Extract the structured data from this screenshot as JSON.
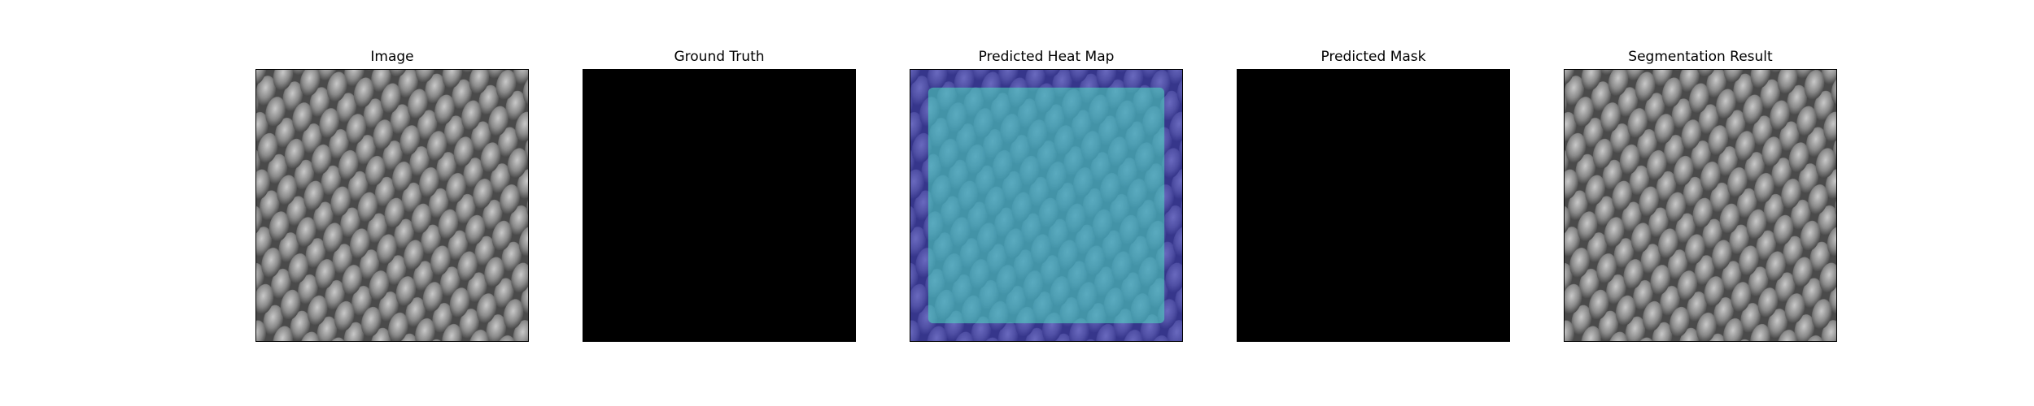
{
  "panels": [
    {
      "title": "Image",
      "kind": "texture"
    },
    {
      "title": "Ground Truth",
      "kind": "black"
    },
    {
      "title": "Predicted Heat Map",
      "kind": "heatmap"
    },
    {
      "title": "Predicted Mask",
      "kind": "black"
    },
    {
      "title": "Segmentation Result",
      "kind": "texture"
    }
  ],
  "colors": {
    "mask": "#000000",
    "heat_low": "#3b3bc8",
    "heat_high": "#4ee0c0"
  }
}
